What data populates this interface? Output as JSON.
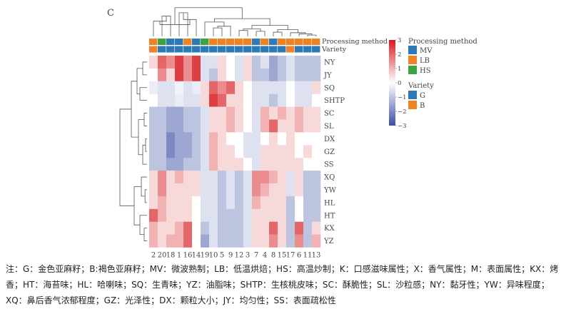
{
  "chart_data": {
    "type": "heatmap",
    "panel_label": "C",
    "rows": [
      "NY",
      "JY",
      "SQ",
      "SHTP",
      "SC",
      "SL",
      "DX",
      "GZ",
      "SS",
      "XQ",
      "YW",
      "HL",
      "HT",
      "KX",
      "YZ"
    ],
    "columns": [
      "2",
      "20",
      "18",
      "1",
      "16",
      "14",
      "19",
      "10",
      "5",
      "9",
      "12",
      "3",
      "7",
      "4",
      "8",
      "15",
      "17",
      "6",
      "11",
      "13"
    ],
    "values": [
      [
        0.5,
        2.0,
        1.5,
        2.5,
        1.5,
        2.5,
        -0.5,
        -0.5,
        0.5,
        0.0,
        -0.5,
        0.5,
        -1.0,
        -0.5,
        -1.5,
        -1.0,
        -0.5,
        -1.0,
        -1.0,
        -1.0
      ],
      [
        0.0,
        1.5,
        0.5,
        2.5,
        1.5,
        2.5,
        -0.5,
        -1.0,
        0.5,
        0.0,
        -0.5,
        0.5,
        -1.0,
        -1.0,
        -1.5,
        -1.0,
        -0.5,
        -1.0,
        -1.0,
        -1.0
      ],
      [
        -0.3,
        -0.5,
        -0.5,
        -0.2,
        -0.5,
        -0.3,
        0.5,
        2.0,
        1.5,
        2.0,
        0.5,
        0.0,
        -0.5,
        -0.5,
        -0.5,
        -0.5,
        0.0,
        -0.5,
        -0.5,
        0.5
      ],
      [
        0.0,
        -0.5,
        -0.5,
        -0.3,
        -0.5,
        -0.5,
        0.5,
        2.5,
        2.0,
        0.5,
        0.5,
        0.0,
        -0.5,
        -0.5,
        -1.0,
        -0.5,
        0.0,
        -0.5,
        -0.5,
        0.0
      ],
      [
        -1.0,
        -1.0,
        -1.5,
        -1.5,
        -1.0,
        -1.0,
        -0.5,
        0.5,
        0.5,
        1.0,
        0.5,
        0.0,
        -0.5,
        1.0,
        0.5,
        1.0,
        0.5,
        1.0,
        0.5,
        0.5
      ],
      [
        -1.0,
        -1.0,
        -1.5,
        -1.5,
        -1.0,
        -1.0,
        -0.5,
        0.5,
        0.5,
        1.0,
        0.5,
        0.0,
        -0.5,
        1.0,
        2.0,
        0.5,
        0.5,
        1.0,
        0.5,
        0.5
      ],
      [
        -1.0,
        -1.0,
        -2.0,
        -1.5,
        -1.5,
        -1.0,
        -0.5,
        1.0,
        0.5,
        0.0,
        0.0,
        -0.5,
        -0.5,
        0.0,
        0.5,
        0.0,
        0.5,
        0.0,
        0.0,
        0.0
      ],
      [
        -1.0,
        -1.0,
        -2.0,
        -1.5,
        -1.5,
        -1.0,
        -0.5,
        1.0,
        0.5,
        0.5,
        0.0,
        -0.5,
        -0.5,
        0.5,
        0.5,
        0.5,
        0.5,
        0.0,
        0.5,
        0.0
      ],
      [
        -1.0,
        -1.0,
        -1.5,
        -1.5,
        -1.0,
        -1.0,
        -0.5,
        1.0,
        0.5,
        0.5,
        0.5,
        0.0,
        -0.5,
        0.5,
        0.5,
        0.5,
        0.5,
        0.5,
        0.0,
        0.0
      ],
      [
        0.5,
        1.5,
        0.5,
        1.0,
        0.5,
        0.5,
        -0.5,
        -0.5,
        -1.0,
        -0.5,
        -1.0,
        -0.5,
        1.5,
        1.5,
        1.0,
        0.5,
        -0.5,
        0.5,
        -1.0,
        -1.0
      ],
      [
        0.5,
        1.5,
        0.5,
        0.5,
        0.5,
        0.5,
        -0.5,
        -0.5,
        -1.0,
        -0.5,
        -1.0,
        -0.5,
        1.5,
        1.0,
        0.5,
        0.5,
        -0.5,
        0.5,
        -1.0,
        -1.0
      ],
      [
        0.5,
        1.0,
        0.5,
        0.5,
        0.5,
        0.0,
        -0.5,
        -0.5,
        -1.0,
        -0.5,
        -1.0,
        -0.5,
        1.0,
        0.5,
        0.5,
        0.5,
        -1.0,
        0.0,
        -1.0,
        -1.0
      ],
      [
        2.0,
        1.0,
        0.5,
        0.5,
        0.5,
        0.0,
        -0.5,
        -0.5,
        -1.0,
        -1.0,
        -1.0,
        -0.5,
        0.5,
        0.5,
        0.5,
        0.5,
        -1.0,
        0.0,
        -1.0,
        -1.0
      ],
      [
        1.0,
        0.5,
        0.5,
        1.0,
        2.0,
        0.0,
        -1.0,
        -0.5,
        -1.0,
        -1.0,
        -1.0,
        -0.5,
        0.5,
        0.5,
        2.0,
        0.5,
        -1.0,
        2.0,
        -1.0,
        0.5
      ],
      [
        1.0,
        0.5,
        1.0,
        1.0,
        2.0,
        0.0,
        -1.5,
        -0.5,
        -1.0,
        -1.0,
        -1.0,
        -0.5,
        0.5,
        0.5,
        1.5,
        0.5,
        -1.0,
        1.5,
        -1.0,
        1.0
      ]
    ],
    "annotations": {
      "Processing method": [
        "LB",
        "HS",
        "MV",
        "MV",
        "LB",
        "MV",
        "HS",
        "LB",
        "LB",
        "LB",
        "LB",
        "LB",
        "MV",
        "LB",
        "MV",
        "LB",
        "LB",
        "LB",
        "LB",
        "LB"
      ],
      "Variety": [
        "B",
        "G",
        "G",
        "G",
        "G",
        "G",
        "G",
        "G",
        "G",
        "G",
        "G",
        "G",
        "G",
        "G",
        "G",
        "G",
        "B",
        "G",
        "G",
        "G"
      ]
    },
    "color_scale": {
      "min": -3,
      "max": 3,
      "ticks": [
        3,
        2,
        1,
        0,
        -1,
        -2,
        -3
      ],
      "tick_labels": [
        "3",
        "2",
        "1",
        "0",
        "−1",
        "−2",
        "−3"
      ],
      "low": "#3a4ea3",
      "mid": "#ffffff",
      "high": "#d7191c"
    },
    "legend": {
      "title": "Processing method",
      "items": [
        {
          "key": "MV",
          "label": "MV",
          "color": "#2e7ab6"
        },
        {
          "key": "LB",
          "label": "LB",
          "color": "#ee8326"
        },
        {
          "key": "HS",
          "label": "HS",
          "color": "#3da341"
        }
      ],
      "variety_title": "Variety",
      "variety_items": [
        {
          "key": "G",
          "label": "G",
          "color": "#2e7ab6"
        },
        {
          "key": "B",
          "label": "B",
          "color": "#ee8326"
        }
      ]
    },
    "annotation_labels": [
      "Processing method",
      "Variety"
    ]
  },
  "note": "注：G：金色亚麻籽；B:褐色亚麻籽；MV：微波熟制；LB：低温烘焙；HS：高温炒制；K：口感滋味属性；X：香气属性；M：表面属性；KX：烤香；HT：海苔味；HL：哈喇味；SQ：生青味；YZ：油脂味；SHTP：生核桃皮味；SC：酥脆性；SL：沙粒感；NY：黏牙性；YW：异味程度；XQ：鼻后香气浓郁程度；GZ：光泽性；DX：颗粒大小；JY：均匀性；SS：表面疏松性"
}
